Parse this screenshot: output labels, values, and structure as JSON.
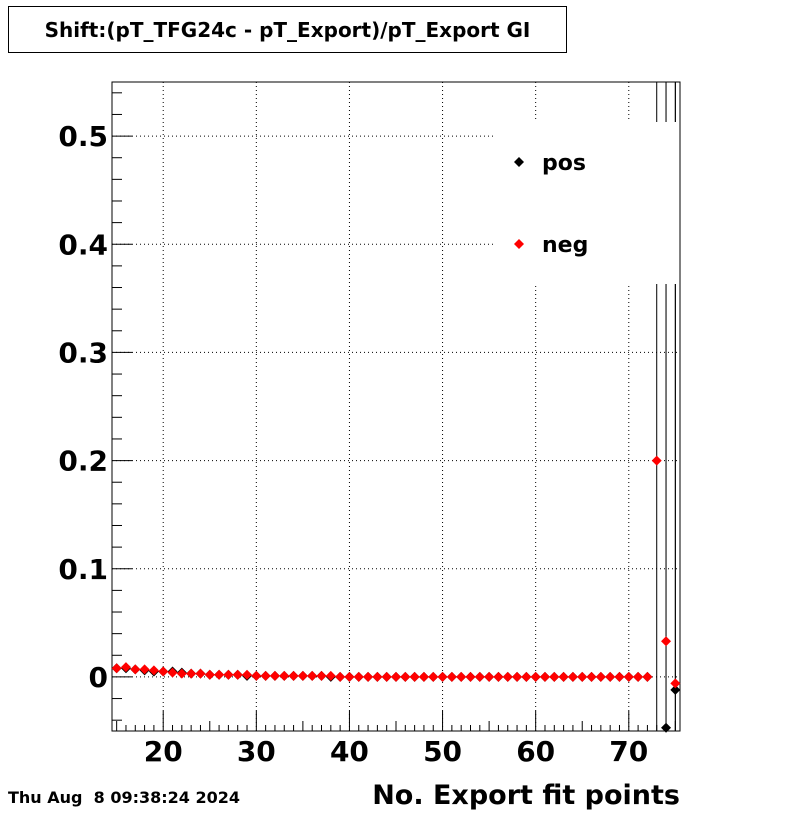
{
  "title": "Shift:(pT_TFG24c - pT_Export)/pT_Export GI",
  "timestamp": "Thu Aug  8 09:38:24 2024",
  "chart_data": {
    "type": "scatter",
    "title": "Shift:(pT_TFG24c - pT_Export)/pT_Export GI",
    "xlabel": "No. Export fit points",
    "ylabel": "",
    "xlim": [
      14.5,
      75.5
    ],
    "ylim": [
      -0.05,
      0.55
    ],
    "grid": true,
    "legend_position": "top-right",
    "x_ticks": [
      20,
      30,
      40,
      50,
      60,
      70
    ],
    "x_tick_labels": [
      "20",
      "30",
      "40",
      "50",
      "60",
      "70"
    ],
    "y_ticks": [
      0,
      0.1,
      0.2,
      0.3,
      0.4,
      0.5
    ],
    "y_tick_labels": [
      "0",
      "0.1",
      "0.2",
      "0.3",
      "0.4",
      "0.5"
    ],
    "x": [
      15,
      16,
      17,
      18,
      19,
      20,
      21,
      22,
      23,
      24,
      25,
      26,
      27,
      28,
      29,
      30,
      31,
      32,
      33,
      34,
      35,
      36,
      37,
      38,
      39,
      40,
      41,
      42,
      43,
      44,
      45,
      46,
      47,
      48,
      49,
      50,
      51,
      52,
      53,
      54,
      55,
      56,
      57,
      58,
      59,
      60,
      61,
      62,
      63,
      64,
      65,
      66,
      67,
      68,
      69,
      70,
      71,
      72,
      73,
      74,
      75
    ],
    "series": [
      {
        "name": "pos",
        "color": "#000000",
        "values": [
          0.008,
          0.008,
          0.007,
          0.006,
          0.005,
          0.005,
          0.005,
          0.004,
          0.003,
          0.003,
          0.002,
          0.002,
          0.002,
          0.002,
          0.001,
          0.001,
          0.001,
          0.001,
          0.001,
          0.001,
          0.001,
          0.001,
          0.001,
          0.0,
          0.0,
          0.0,
          0.0,
          0.0,
          0.0,
          0.0,
          0.0,
          0.0,
          0.0,
          0.0,
          0.0,
          0.0,
          0.0,
          0.0,
          0.0,
          0.0,
          0.0,
          0.0,
          0.0,
          0.0,
          0.0,
          0.0,
          0.0,
          0.0,
          0.0,
          0.0,
          0.0,
          0.0,
          0.0,
          0.0,
          0.0,
          0.0,
          0.0,
          0.0,
          null,
          -0.047,
          -0.012
        ],
        "error_bars": [
          0,
          0,
          0,
          0,
          0,
          0,
          0,
          0,
          0,
          0,
          0,
          0,
          0,
          0,
          0,
          0,
          0,
          0,
          0,
          0,
          0,
          0,
          0,
          0,
          0,
          0,
          0,
          0,
          0,
          0,
          0,
          0,
          0,
          0,
          0,
          0,
          0,
          0,
          0,
          0,
          0,
          0,
          0,
          0,
          0,
          0,
          0,
          0,
          0,
          0,
          0,
          0,
          0,
          0,
          0,
          0,
          0,
          0,
          0,
          0.6,
          0.6
        ]
      },
      {
        "name": "neg",
        "color": "#ff0000",
        "values": [
          0.008,
          0.009,
          0.007,
          0.007,
          0.006,
          0.005,
          0.004,
          0.003,
          0.003,
          0.003,
          0.002,
          0.002,
          0.002,
          0.002,
          0.002,
          0.001,
          0.001,
          0.001,
          0.001,
          0.001,
          0.001,
          0.001,
          0.001,
          0.001,
          0.0,
          0.0,
          0.0,
          0.0,
          0.0,
          0.0,
          0.0,
          0.0,
          0.0,
          0.0,
          0.0,
          0.0,
          0.0,
          0.0,
          0.0,
          0.0,
          0.0,
          0.0,
          0.0,
          0.0,
          0.0,
          0.0,
          0.0,
          0.0,
          0.0,
          0.0,
          0.0,
          0.0,
          0.0,
          0.0,
          0.0,
          0.0,
          0.0,
          0.0,
          0.2,
          0.033,
          -0.006
        ],
        "error_bars": [
          0,
          0,
          0,
          0,
          0,
          0,
          0,
          0,
          0,
          0,
          0,
          0,
          0,
          0,
          0,
          0,
          0,
          0,
          0,
          0,
          0,
          0,
          0,
          0,
          0,
          0,
          0,
          0,
          0,
          0,
          0,
          0,
          0,
          0,
          0,
          0,
          0,
          0,
          0,
          0,
          0,
          0,
          0,
          0,
          0,
          0,
          0,
          0,
          0,
          0,
          0,
          0,
          0,
          0,
          0,
          0,
          0,
          0,
          0.6,
          0.6,
          0.6
        ]
      }
    ]
  }
}
